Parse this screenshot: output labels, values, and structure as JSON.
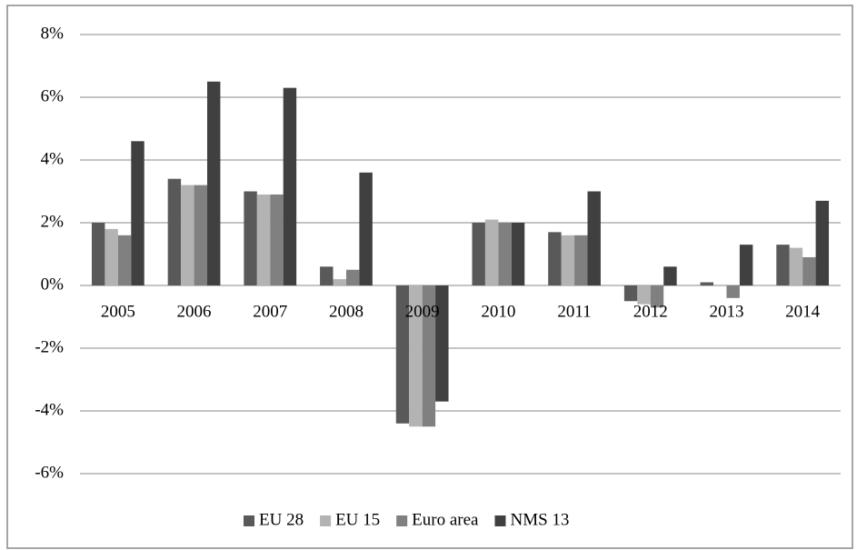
{
  "chart_data": {
    "type": "bar",
    "categories": [
      "2005",
      "2006",
      "2007",
      "2008",
      "2009",
      "2010",
      "2011",
      "2012",
      "2013",
      "2014"
    ],
    "series": [
      {
        "name": "EU 28",
        "color": "#595959",
        "values": [
          2.0,
          3.4,
          3.0,
          0.6,
          -4.4,
          2.0,
          1.7,
          -0.5,
          0.1,
          1.3
        ]
      },
      {
        "name": "EU 15",
        "color": "#b3b3b3",
        "values": [
          1.8,
          3.2,
          2.9,
          0.2,
          -4.5,
          2.1,
          1.6,
          -0.6,
          0.0,
          1.2
        ]
      },
      {
        "name": "Euro area",
        "color": "#808080",
        "values": [
          1.6,
          3.2,
          2.9,
          0.5,
          -4.5,
          2.0,
          1.6,
          -0.7,
          -0.4,
          0.9
        ]
      },
      {
        "name": "NMS 13",
        "color": "#404040",
        "values": [
          4.6,
          6.5,
          6.3,
          3.6,
          -3.7,
          2.0,
          3.0,
          0.6,
          1.3,
          2.7
        ]
      }
    ],
    "ylim": [
      -6,
      8
    ],
    "yticks": [
      {
        "value": -6,
        "label": "-6%"
      },
      {
        "value": -4,
        "label": "-4%"
      },
      {
        "value": -2,
        "label": "-2%"
      },
      {
        "value": 0,
        "label": "0%"
      },
      {
        "value": 2,
        "label": "2%"
      },
      {
        "value": 4,
        "label": "4%"
      },
      {
        "value": 6,
        "label": "6%"
      },
      {
        "value": 8,
        "label": "8%"
      }
    ],
    "grid": true,
    "legend": "bottom"
  }
}
